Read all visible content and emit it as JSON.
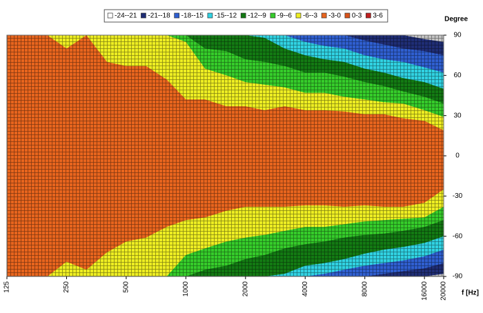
{
  "chart_data": {
    "type": "contour",
    "xlabel": "f [Hz]",
    "ylabel": "Degree",
    "xscale": "log",
    "xlim": [
      125,
      20000
    ],
    "ylim": [
      -90,
      90
    ],
    "xticks": [
      125,
      250,
      500,
      1000,
      2000,
      4000,
      8000,
      16000,
      20000
    ],
    "yticks": [
      90,
      60,
      30,
      0,
      -30,
      -60,
      -90
    ],
    "background_color": "#c4c4c4",
    "legend": [
      {
        "label": "-24--21",
        "color": "#ffffff"
      },
      {
        "label": "-21--18",
        "color": "#1f2d75"
      },
      {
        "label": "-18--15",
        "color": "#2f5fd0"
      },
      {
        "label": "-15--12",
        "color": "#30d2e2"
      },
      {
        "label": "-12--9",
        "color": "#137a13"
      },
      {
        "label": "-9--6",
        "color": "#35cc2a"
      },
      {
        "label": "-6--3",
        "color": "#eeee22"
      },
      {
        "label": "-3-0",
        "color": "#e8651e"
      },
      {
        "label": "0-3",
        "color": "#d9531a"
      },
      {
        "label": "3-6",
        "color": "#c02020"
      }
    ],
    "x": [
      125,
      160,
      200,
      250,
      315,
      400,
      500,
      630,
      800,
      1000,
      1250,
      1600,
      2000,
      2500,
      3150,
      4000,
      5000,
      6300,
      8000,
      10000,
      12500,
      16000,
      20000
    ],
    "contours": [
      {
        "color": "#1f2d75",
        "upper": [
          90,
          90,
          90,
          90,
          90,
          90,
          90,
          90,
          90,
          90,
          90,
          90,
          90,
          90,
          90,
          90,
          90,
          90,
          90,
          90,
          90,
          87,
          85
        ],
        "lower": [
          -90,
          -90,
          -90,
          -90,
          -90,
          -90,
          -90,
          -90,
          -90,
          -90,
          -90,
          -90,
          -90,
          -90,
          -90,
          -90,
          -90,
          -90,
          -90,
          -90,
          -90,
          -90,
          -88
        ]
      },
      {
        "color": "#2f5fd0",
        "upper": [
          90,
          90,
          90,
          90,
          90,
          90,
          90,
          90,
          90,
          90,
          90,
          90,
          90,
          90,
          90,
          90,
          90,
          90,
          86,
          83,
          80,
          78,
          75
        ],
        "lower": [
          -90,
          -90,
          -90,
          -90,
          -90,
          -90,
          -90,
          -90,
          -90,
          -90,
          -90,
          -90,
          -90,
          -90,
          -90,
          -90,
          -90,
          -90,
          -90,
          -88,
          -86,
          -84,
          -80
        ]
      },
      {
        "color": "#30d2e2",
        "upper": [
          90,
          90,
          90,
          90,
          90,
          90,
          90,
          90,
          90,
          90,
          90,
          90,
          90,
          90,
          90,
          85,
          82,
          80,
          75,
          72,
          70,
          66,
          62
        ],
        "lower": [
          -90,
          -90,
          -90,
          -90,
          -90,
          -90,
          -90,
          -90,
          -90,
          -90,
          -90,
          -90,
          -90,
          -90,
          -90,
          -90,
          -88,
          -85,
          -82,
          -80,
          -78,
          -75,
          -70
        ]
      },
      {
        "color": "#137a13",
        "upper": [
          90,
          90,
          90,
          90,
          90,
          90,
          90,
          90,
          90,
          90,
          90,
          90,
          90,
          88,
          80,
          75,
          72,
          70,
          65,
          62,
          58,
          55,
          50
        ],
        "lower": [
          -90,
          -90,
          -90,
          -90,
          -90,
          -90,
          -90,
          -90,
          -90,
          -90,
          -90,
          -90,
          -90,
          -90,
          -88,
          -82,
          -80,
          -77,
          -73,
          -70,
          -68,
          -65,
          -60
        ]
      },
      {
        "color": "#35cc2a",
        "upper": [
          90,
          90,
          90,
          90,
          90,
          90,
          90,
          90,
          90,
          90,
          80,
          78,
          72,
          70,
          67,
          62,
          62,
          59,
          55,
          52,
          48,
          44,
          39
        ],
        "lower": [
          -90,
          -90,
          -90,
          -90,
          -90,
          -90,
          -90,
          -90,
          -90,
          -90,
          -85,
          -82,
          -77,
          -74,
          -69,
          -66,
          -64,
          -61,
          -59,
          -58,
          -56,
          -53,
          -48
        ]
      },
      {
        "color": "#eeee22",
        "upper": [
          90,
          90,
          90,
          90,
          90,
          90,
          90,
          90,
          90,
          85,
          65,
          60,
          55,
          53,
          51,
          47,
          47,
          44,
          42,
          40,
          39,
          34,
          29
        ],
        "lower": [
          -90,
          -90,
          -90,
          -90,
          -90,
          -90,
          -90,
          -90,
          -90,
          -74,
          -69,
          -64,
          -61,
          -59,
          -56,
          -53,
          -53,
          -51,
          -49,
          -48,
          -47,
          -46,
          -38
        ]
      },
      {
        "color": "#e8651e",
        "upper": [
          90,
          90,
          90,
          80,
          90,
          70,
          67,
          67,
          57,
          42,
          42,
          37,
          37,
          34,
          37,
          34,
          34,
          33,
          31,
          31,
          28,
          26,
          19
        ],
        "lower": [
          -90,
          -90,
          -90,
          -79,
          -85,
          -72,
          -64,
          -61,
          -53,
          -48,
          -46,
          -41,
          -38,
          -38,
          -38,
          -37,
          -37,
          -38,
          -37,
          -38,
          -38,
          -35,
          -25
        ]
      }
    ]
  }
}
